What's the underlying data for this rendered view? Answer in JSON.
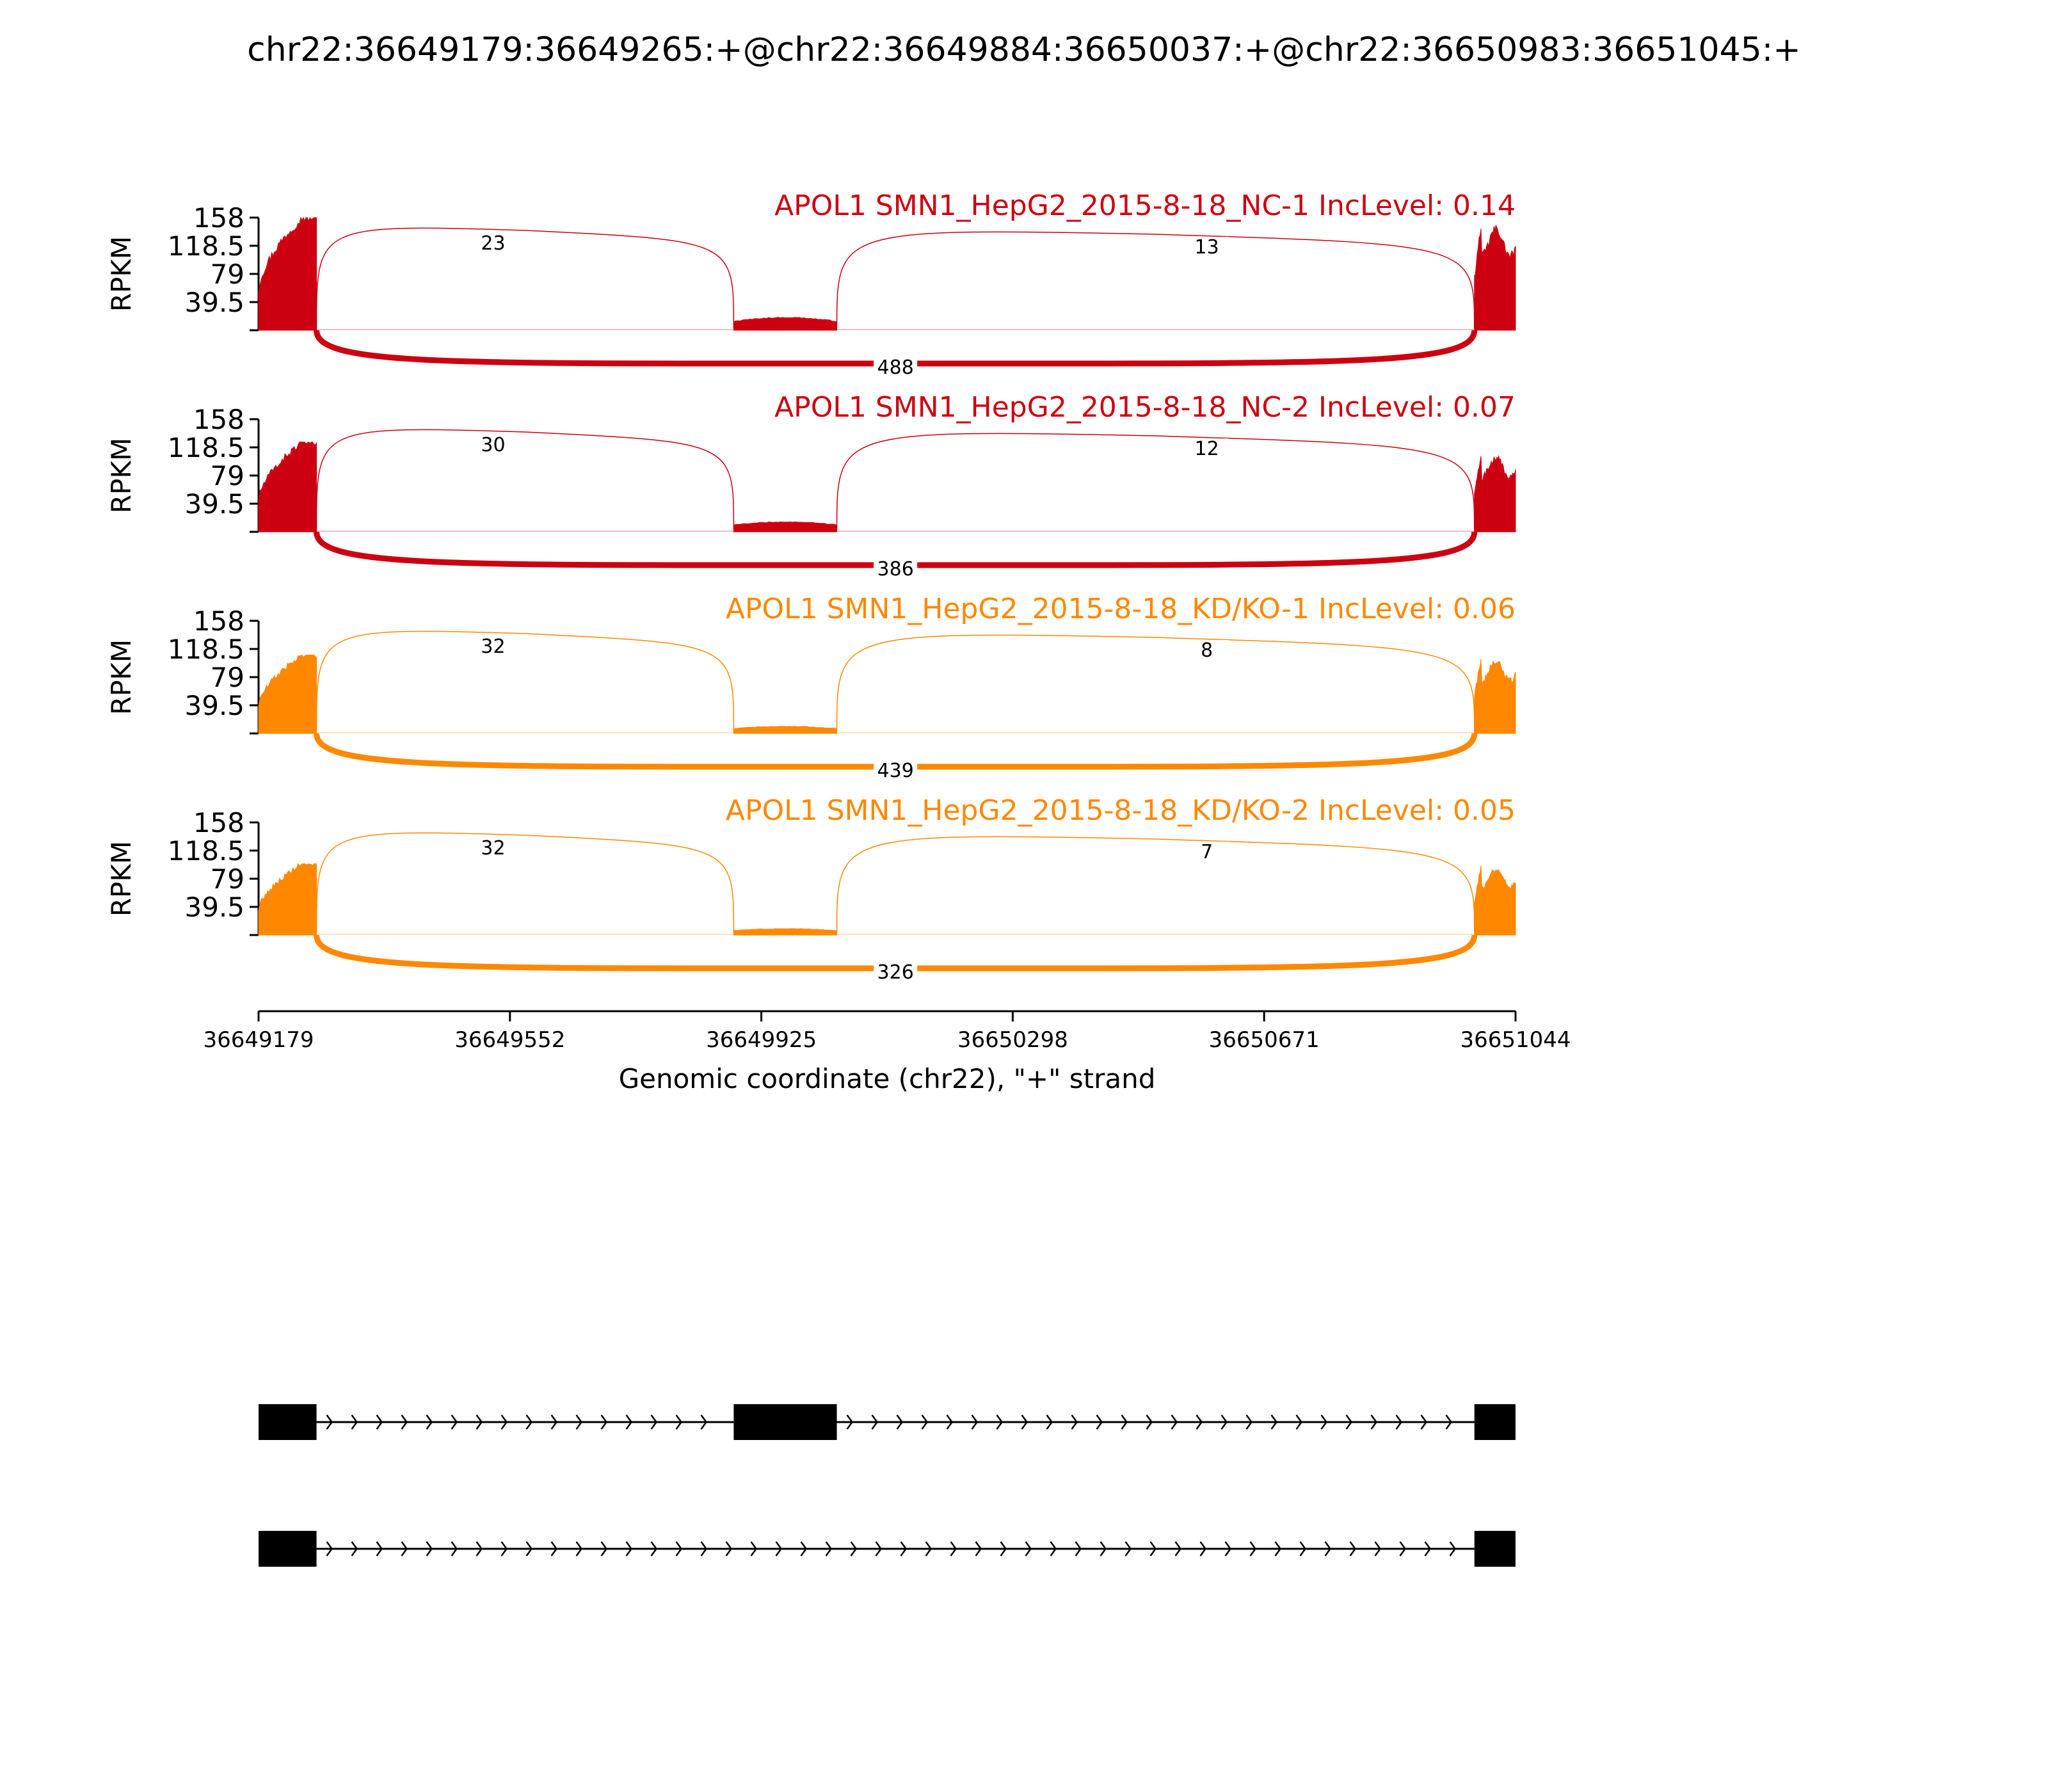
{
  "title": "chr22:36649179:36649265:+@chr22:36649884:36650037:+@chr22:36650983:36651045:+",
  "chart_data": {
    "type": "area",
    "y_label": "RPKM",
    "y_ticks": [
      "39.5",
      "79",
      "118.5",
      "158"
    ],
    "ylim": [
      0,
      158
    ],
    "xlim": [
      36649179,
      36651044
    ],
    "x_ticks": [
      "36649179",
      "36649552",
      "36649925",
      "36650298",
      "36650671",
      "36651044"
    ],
    "x_label": "Genomic coordinate (chr22), \"+\" strand",
    "exons": [
      [
        36649179,
        36649265
      ],
      [
        36649884,
        36650037
      ],
      [
        36650983,
        36651044
      ]
    ],
    "panels": [
      {
        "title": "APOL1 SMN1_HepG2_2015-8-18_NC-1 IncLevel: 0.14",
        "color": "#cc0011",
        "exon_peaks": [
          158,
          18,
          158
        ],
        "junctions": [
          {
            "from": 36649265,
            "to": 36649884,
            "count": 23
          },
          {
            "from": 36650037,
            "to": 36650983,
            "count": 13
          },
          {
            "from": 36649265,
            "to": 36650983,
            "count": 488
          }
        ]
      },
      {
        "title": "APOL1 SMN1_HepG2_2015-8-18_NC-2 IncLevel: 0.07",
        "color": "#cc0011",
        "exon_peaks": [
          126,
          14,
          116
        ],
        "junctions": [
          {
            "from": 36649265,
            "to": 36649884,
            "count": 30
          },
          {
            "from": 36650037,
            "to": 36650983,
            "count": 12
          },
          {
            "from": 36649265,
            "to": 36650983,
            "count": 386
          }
        ]
      },
      {
        "title": "APOL1 SMN1_HepG2_2015-8-18_KD/KO-1 IncLevel: 0.06",
        "color": "#ff8800",
        "exon_peaks": [
          110,
          10,
          112
        ],
        "junctions": [
          {
            "from": 36649265,
            "to": 36649884,
            "count": 32
          },
          {
            "from": 36650037,
            "to": 36650983,
            "count": 8
          },
          {
            "from": 36649265,
            "to": 36650983,
            "count": 439
          }
        ]
      },
      {
        "title": "APOL1 SMN1_HepG2_2015-8-18_KD/KO-2 IncLevel: 0.05",
        "color": "#ff8800",
        "exon_peaks": [
          100,
          9,
          103
        ],
        "junctions": [
          {
            "from": 36649265,
            "to": 36649884,
            "count": 32
          },
          {
            "from": 36650037,
            "to": 36650983,
            "count": 7
          },
          {
            "from": 36649265,
            "to": 36650983,
            "count": 326
          }
        ]
      }
    ],
    "isoforms": [
      {
        "exons": [
          [
            36649179,
            36649265
          ],
          [
            36649884,
            36650037
          ],
          [
            36650983,
            36651044
          ]
        ]
      },
      {
        "exons": [
          [
            36649179,
            36649265
          ],
          [
            36650983,
            36651044
          ]
        ]
      }
    ]
  }
}
